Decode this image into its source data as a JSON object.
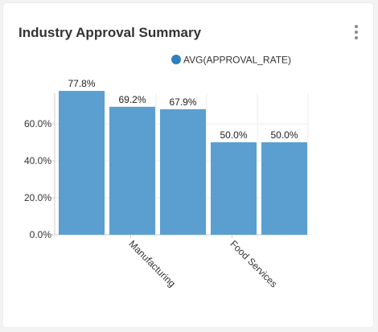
{
  "card": {
    "title": "Industry Approval Summary",
    "menu_icon": "vertical-ellipsis-icon"
  },
  "chart_data": {
    "type": "bar",
    "categories": [
      "",
      "Manufacturing",
      "",
      "Food Services",
      ""
    ],
    "series": [
      {
        "name": "AVG(APPROVAL_RATE)",
        "values": [
          77.8,
          69.2,
          67.9,
          50.0,
          50.0
        ],
        "value_labels": [
          "77.8%",
          "69.2%",
          "67.9%",
          "50.0%",
          "50.0%"
        ],
        "color": "#5b9fd1"
      }
    ],
    "y_ticks": [
      0,
      20,
      40,
      60
    ],
    "y_tick_labels": [
      "0.0%",
      "20.0%",
      "40.0%",
      "60.0%"
    ],
    "ylim": [
      0,
      80
    ],
    "grid": true,
    "legend_position": "top-right",
    "legend_marker_color": "#2f7fc1"
  }
}
